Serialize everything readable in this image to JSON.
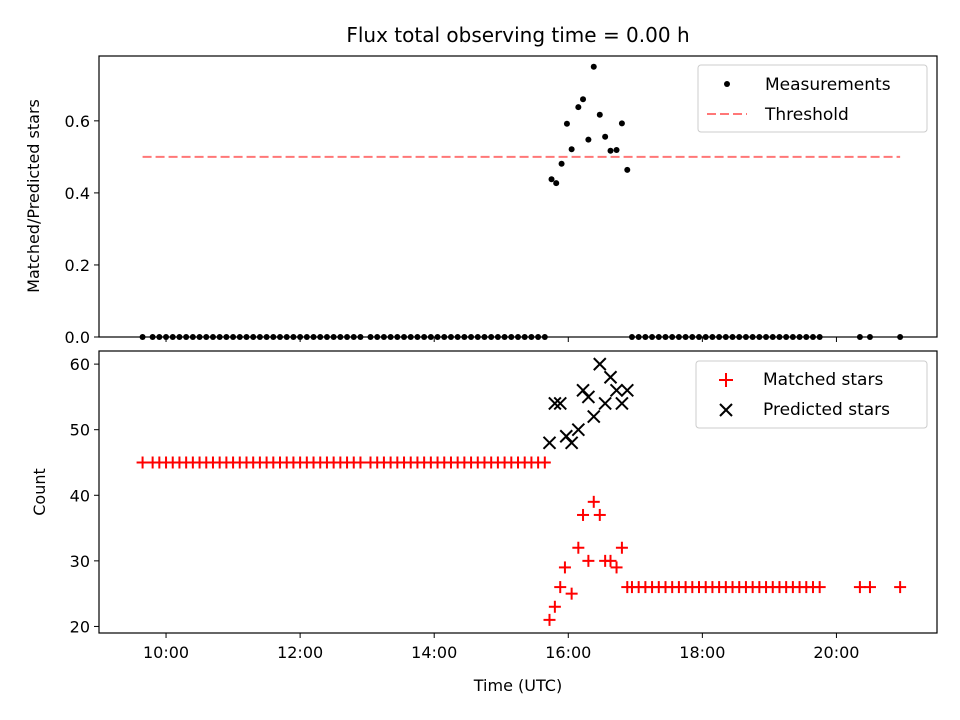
{
  "title": "Flux total observing time = 0.00 h",
  "colors": {
    "threshold": "#ff7777",
    "matched": "#ff0000",
    "predicted": "#000000",
    "measurement": "#000000"
  },
  "chart_data": [
    {
      "type": "scatter",
      "ylabel": "Matched/Predicted stars",
      "xlim": [
        9.0,
        21.5
      ],
      "ylim": [
        0,
        0.78
      ],
      "yticks": [
        "0.0",
        "0.2",
        "0.4",
        "0.6"
      ],
      "xticks": [
        "10:00",
        "12:00",
        "14:00",
        "16:00",
        "18:00",
        "20:00"
      ],
      "legend": {
        "location": "top-right",
        "entries": [
          "Measurements",
          "Threshold"
        ]
      },
      "threshold": {
        "name": "Threshold",
        "x": [
          9.65,
          20.95
        ],
        "y": 0.5
      },
      "series": [
        {
          "name": "Measurements",
          "x": [
            9.65,
            9.8,
            9.9,
            10.0,
            10.1,
            10.2,
            10.3,
            10.4,
            10.5,
            10.6,
            10.7,
            10.8,
            10.9,
            11.0,
            11.1,
            11.2,
            11.3,
            11.4,
            11.5,
            11.6,
            11.7,
            11.8,
            11.9,
            12.0,
            12.1,
            12.2,
            12.3,
            12.4,
            12.5,
            12.6,
            12.7,
            12.8,
            12.9,
            13.05,
            13.15,
            13.25,
            13.35,
            13.45,
            13.55,
            13.65,
            13.75,
            13.85,
            13.95,
            14.05,
            14.15,
            14.25,
            14.35,
            14.45,
            14.55,
            14.65,
            14.75,
            14.85,
            14.95,
            15.05,
            15.15,
            15.25,
            15.35,
            15.45,
            15.55,
            15.65,
            15.75,
            15.82,
            15.9,
            15.98,
            16.05,
            16.15,
            16.22,
            16.3,
            16.38,
            16.47,
            16.55,
            16.63,
            16.72,
            16.8,
            16.88,
            16.95,
            17.05,
            17.15,
            17.25,
            17.35,
            17.45,
            17.55,
            17.65,
            17.75,
            17.85,
            17.95,
            18.05,
            18.15,
            18.25,
            18.35,
            18.45,
            18.55,
            18.65,
            18.75,
            18.85,
            18.95,
            19.05,
            19.15,
            19.25,
            19.35,
            19.45,
            19.55,
            19.65,
            19.75,
            20.35,
            20.5,
            20.95
          ],
          "y": [
            0,
            0,
            0,
            0,
            0,
            0,
            0,
            0,
            0,
            0,
            0,
            0,
            0,
            0,
            0,
            0,
            0,
            0,
            0,
            0,
            0,
            0,
            0,
            0,
            0,
            0,
            0,
            0,
            0,
            0,
            0,
            0,
            0,
            0,
            0,
            0,
            0,
            0,
            0,
            0,
            0,
            0,
            0,
            0,
            0,
            0,
            0,
            0,
            0,
            0,
            0,
            0,
            0,
            0,
            0,
            0,
            0,
            0,
            0,
            0,
            0.438,
            0.427,
            0.481,
            0.592,
            0.521,
            0.638,
            0.66,
            0.548,
            0.75,
            0.617,
            0.556,
            0.517,
            0.519,
            0.593,
            0.464,
            0,
            0,
            0,
            0,
            0,
            0,
            0,
            0,
            0,
            0,
            0,
            0,
            0,
            0,
            0,
            0,
            0,
            0,
            0,
            0,
            0,
            0,
            0,
            0,
            0,
            0,
            0,
            0,
            0,
            0,
            0,
            0
          ]
        }
      ]
    },
    {
      "type": "scatter",
      "xlabel": "Time (UTC)",
      "ylabel": "Count",
      "xlim": [
        9.0,
        21.5
      ],
      "ylim": [
        19,
        62
      ],
      "yticks": [
        "20",
        "30",
        "40",
        "50",
        "60"
      ],
      "xticks": [
        "10:00",
        "12:00",
        "14:00",
        "16:00",
        "18:00",
        "20:00"
      ],
      "legend": {
        "location": "top-right",
        "entries": [
          "Matched stars",
          "Predicted stars"
        ]
      },
      "series": [
        {
          "name": "Matched stars",
          "x": [
            9.65,
            9.8,
            9.9,
            10.0,
            10.1,
            10.2,
            10.3,
            10.4,
            10.5,
            10.6,
            10.7,
            10.8,
            10.9,
            11.0,
            11.1,
            11.2,
            11.3,
            11.4,
            11.5,
            11.6,
            11.7,
            11.8,
            11.9,
            12.0,
            12.1,
            12.2,
            12.3,
            12.4,
            12.5,
            12.6,
            12.7,
            12.8,
            12.9,
            13.05,
            13.15,
            13.25,
            13.35,
            13.45,
            13.55,
            13.65,
            13.75,
            13.85,
            13.95,
            14.05,
            14.15,
            14.25,
            14.35,
            14.45,
            14.55,
            14.65,
            14.75,
            14.85,
            14.95,
            15.05,
            15.15,
            15.25,
            15.35,
            15.45,
            15.55,
            15.65,
            15.72,
            15.8,
            15.88,
            15.95,
            16.05,
            16.15,
            16.22,
            16.3,
            16.38,
            16.47,
            16.55,
            16.63,
            16.72,
            16.8,
            16.88,
            16.95,
            17.05,
            17.15,
            17.25,
            17.35,
            17.45,
            17.55,
            17.65,
            17.75,
            17.85,
            17.95,
            18.05,
            18.15,
            18.25,
            18.35,
            18.45,
            18.55,
            18.65,
            18.75,
            18.85,
            18.95,
            19.05,
            19.15,
            19.25,
            19.35,
            19.45,
            19.55,
            19.65,
            19.75,
            20.35,
            20.5,
            20.95
          ],
          "y": [
            45,
            45,
            45,
            45,
            45,
            45,
            45,
            45,
            45,
            45,
            45,
            45,
            45,
            45,
            45,
            45,
            45,
            45,
            45,
            45,
            45,
            45,
            45,
            45,
            45,
            45,
            45,
            45,
            45,
            45,
            45,
            45,
            45,
            45,
            45,
            45,
            45,
            45,
            45,
            45,
            45,
            45,
            45,
            45,
            45,
            45,
            45,
            45,
            45,
            45,
            45,
            45,
            45,
            45,
            45,
            45,
            45,
            45,
            45,
            45,
            21,
            23,
            26,
            29,
            25,
            32,
            37,
            30,
            39,
            37,
            30,
            30,
            29,
            32,
            26,
            26,
            26,
            26,
            26,
            26,
            26,
            26,
            26,
            26,
            26,
            26,
            26,
            26,
            26,
            26,
            26,
            26,
            26,
            26,
            26,
            26,
            26,
            26,
            26,
            26,
            26,
            26,
            26,
            26,
            26,
            26,
            26
          ]
        },
        {
          "name": "Predicted stars",
          "x": [
            15.72,
            15.8,
            15.88,
            15.97,
            16.05,
            16.15,
            16.22,
            16.3,
            16.38,
            16.47,
            16.55,
            16.63,
            16.72,
            16.8,
            16.88
          ],
          "y": [
            48,
            54,
            54,
            49,
            48,
            50,
            56,
            55,
            52,
            60,
            54,
            58,
            56,
            54,
            56
          ]
        }
      ]
    }
  ]
}
